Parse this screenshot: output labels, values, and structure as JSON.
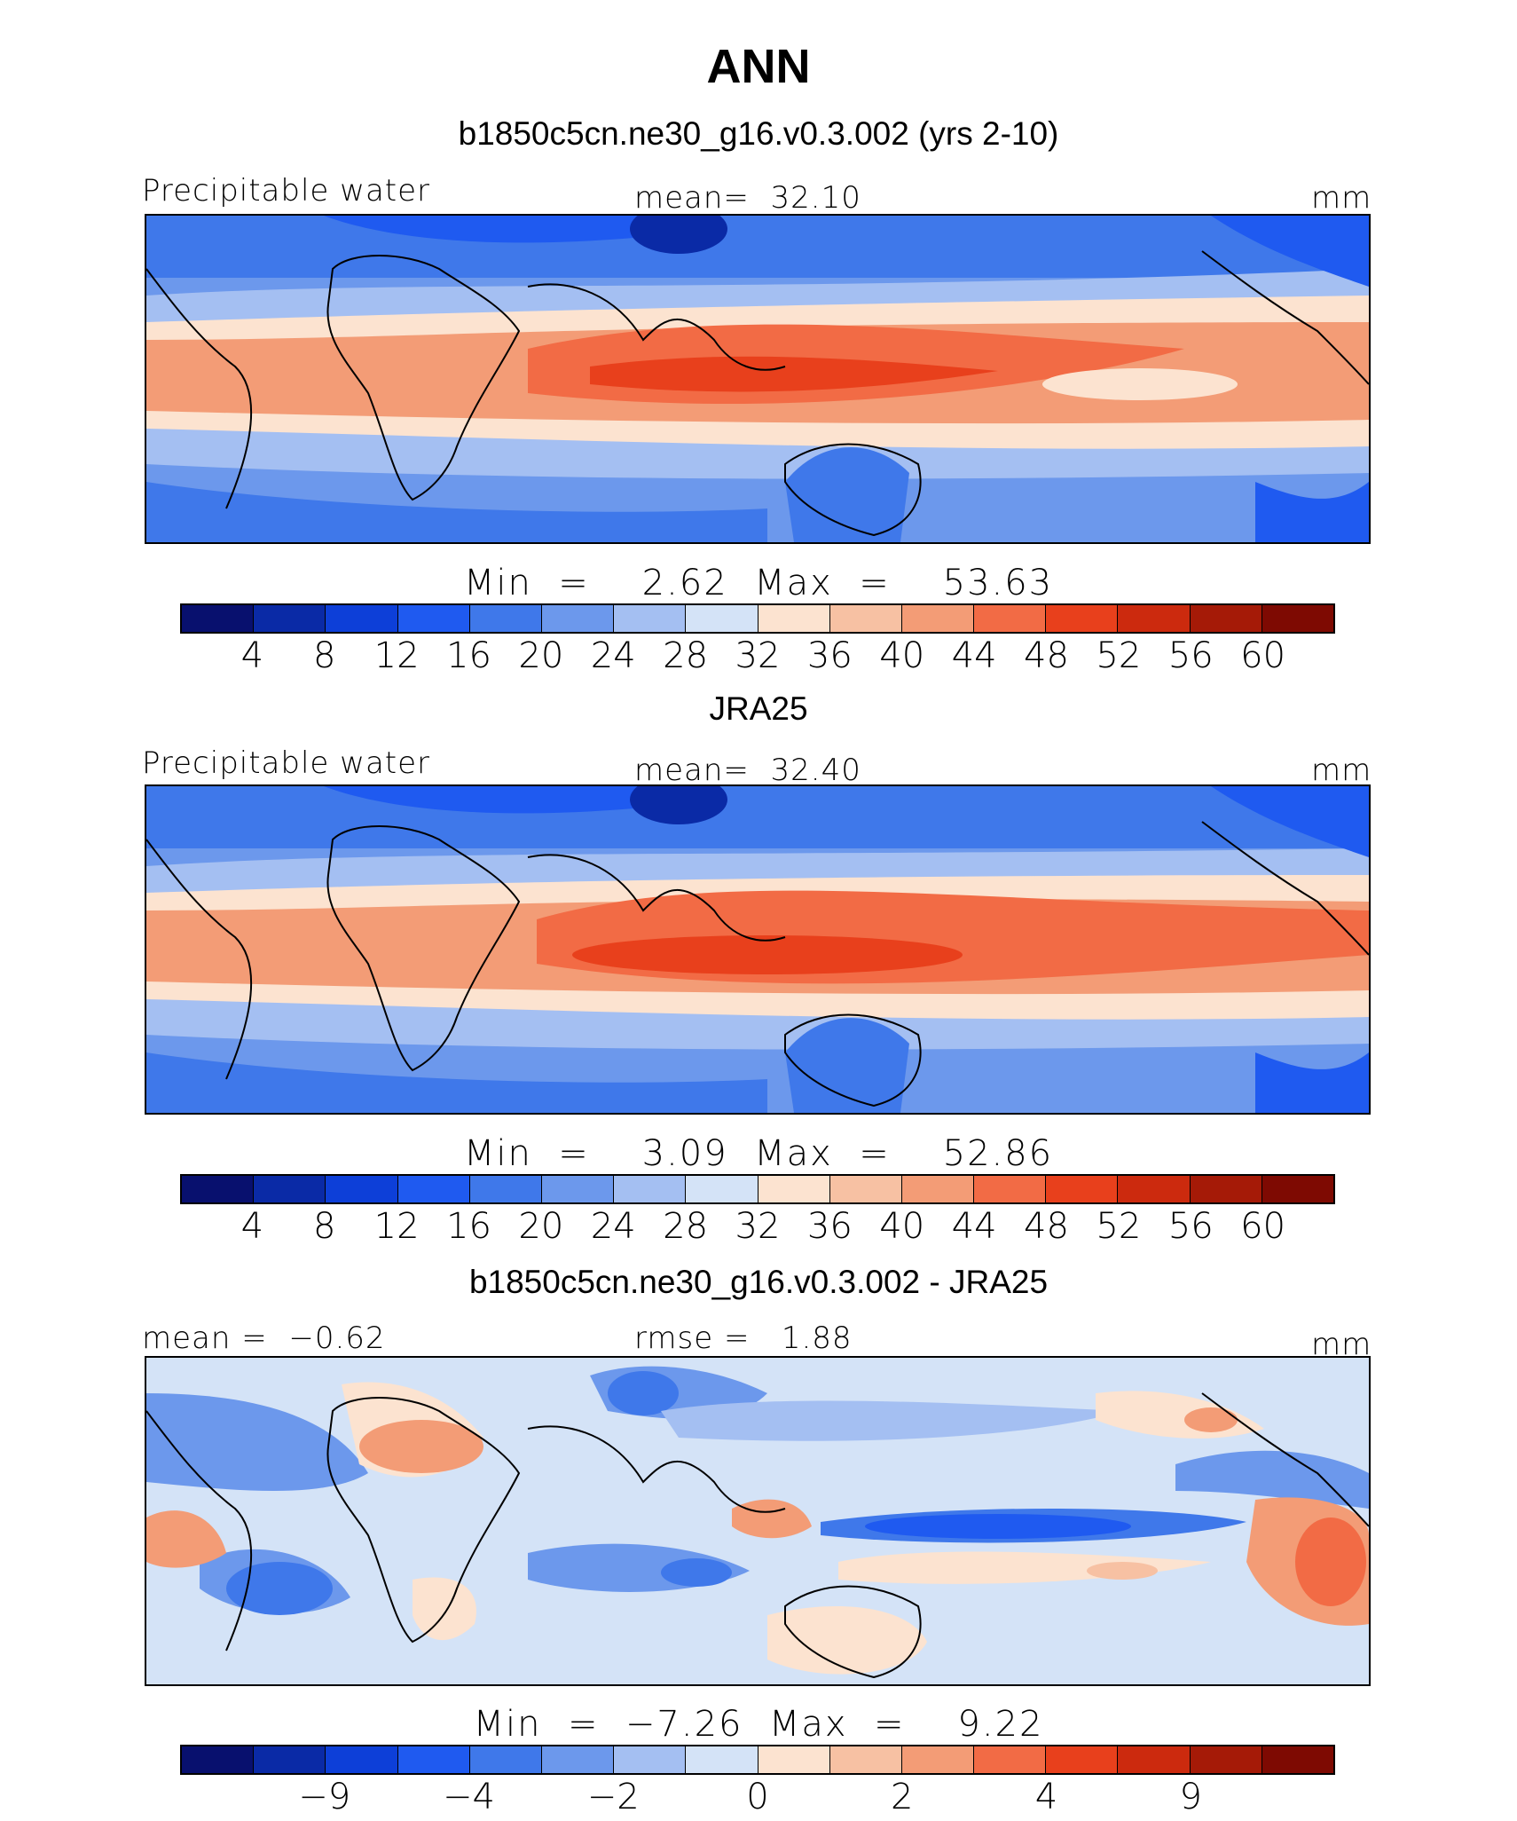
{
  "title": "ANN",
  "panels": [
    {
      "subtitle": "b1850c5cn.ne30_g16.v0.3.002 (yrs 2-10)",
      "left": "Precipitable water",
      "center": "mean=  32.10",
      "right": "mm",
      "stats": "Min  =    2.62  Max  =    53.63",
      "kind": "field"
    },
    {
      "subtitle": "JRA25",
      "left": "Precipitable water",
      "center": "mean=  32.40",
      "right": "mm",
      "stats": "Min  =    3.09  Max  =    52.86",
      "kind": "field"
    },
    {
      "subtitle": "b1850c5cn.ne30_g16.v0.3.002 - JRA25",
      "left": "mean =  −0.62",
      "center": "rmse =   1.88",
      "right": "mm",
      "stats": "Min  =  −7.26  Max  =    9.22",
      "kind": "diff"
    }
  ],
  "colorbars": {
    "field": {
      "ticks": [
        "4",
        "8",
        "12",
        "16",
        "20",
        "24",
        "28",
        "32",
        "36",
        "40",
        "44",
        "48",
        "52",
        "56",
        "60"
      ],
      "tick_positions": [
        1,
        2,
        3,
        4,
        5,
        6,
        7,
        8,
        9,
        10,
        11,
        12,
        13,
        14,
        15
      ]
    },
    "diff": {
      "ticks": [
        "−9",
        "−4",
        "−2",
        "0",
        "2",
        "4",
        "9"
      ],
      "tick_positions": [
        2,
        4,
        6,
        8,
        10,
        12,
        14
      ]
    }
  },
  "colors": [
    "#08106e",
    "#0a2aa6",
    "#0d3fd8",
    "#1f5af0",
    "#3f78ea",
    "#6c98ec",
    "#a4bff2",
    "#d4e3f7",
    "#fce3d0",
    "#f7c1a3",
    "#f39c76",
    "#f26b45",
    "#e8401c",
    "#cc2a0e",
    "#a51a07",
    "#7e0a02"
  ]
}
